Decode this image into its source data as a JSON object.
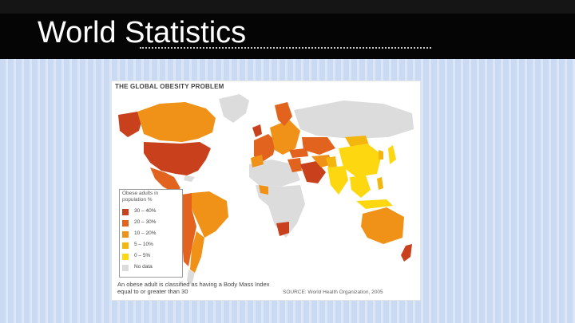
{
  "slide": {
    "title": "World Statistics"
  },
  "figure": {
    "heading": "THE GLOBAL OBESITY PROBLEM",
    "legend": {
      "title": "Obese adults in population %",
      "items": [
        {
          "label": "30 – 40%",
          "color": "#c8401c"
        },
        {
          "label": "20 – 30%",
          "color": "#e2631d"
        },
        {
          "label": "10 – 20%",
          "color": "#ef9217"
        },
        {
          "label": "5 – 10%",
          "color": "#f5b50f"
        },
        {
          "label": "0 – 5%",
          "color": "#fdd70f"
        },
        {
          "label": "No data",
          "color": "#dcdcdc"
        }
      ]
    },
    "footnote": "An obese adult is classified as having a Body Mass Index equal to or greater than 30",
    "source": "SOURCE: World Health Organization, 2005"
  },
  "colors": {
    "header_bg": "#050505",
    "body_stripe_a": "#c9daf2",
    "body_stripe_b": "#dbe7f7"
  }
}
